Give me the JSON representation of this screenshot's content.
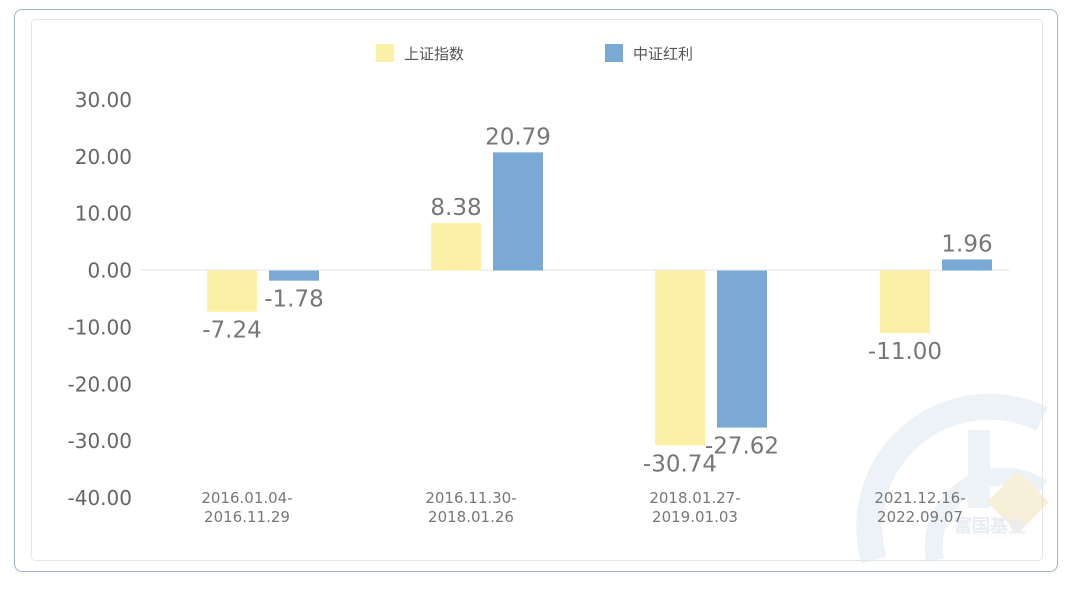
{
  "chart_data": {
    "type": "bar",
    "categories": [
      [
        "2016.01.04-",
        "2016.11.29"
      ],
      [
        "2016.11.30-",
        "2018.01.26"
      ],
      [
        "2018.01.27-",
        "2019.01.03"
      ],
      [
        "2021.12.16-",
        "2022.09.07"
      ]
    ],
    "series": [
      {
        "name": "上证指数",
        "color": "#fbf0a5",
        "values": [
          -7.24,
          8.38,
          -30.74,
          -11.0
        ],
        "labels": [
          "-7.24",
          "8.38",
          "-30.74",
          "-11.00"
        ]
      },
      {
        "name": "中证红利",
        "color": "#7aaad3",
        "values": [
          -1.78,
          20.79,
          -27.62,
          1.96
        ],
        "labels": [
          "-1.78",
          "20.79",
          "-27.62",
          "1.96"
        ]
      }
    ],
    "yticks": [
      "30.00",
      "20.00",
      "10.00",
      "0.00",
      "-10.00",
      "-20.00",
      "-30.00",
      "-40.00"
    ],
    "ylim": [
      -40,
      30
    ],
    "legend_position": "top-center",
    "grid": false
  },
  "watermark": {
    "text": "富国基金",
    "color": "#dfe8f2"
  }
}
